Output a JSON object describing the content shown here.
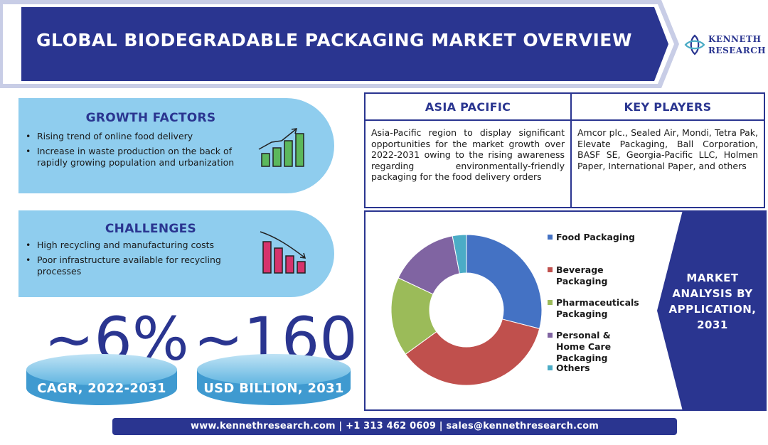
{
  "header": {
    "title": "GLOBAL BIODEGRADABLE PACKAGING MARKET OVERVIEW",
    "logo_line1": "KENNETH",
    "logo_line2": "RESEARCH"
  },
  "growth_factors": {
    "title": "GROWTH FACTORS",
    "items": [
      "Rising trend of online food delivery",
      "Increase in waste production on the back of rapidly growing population and urbanization"
    ]
  },
  "challenges": {
    "title": "CHALLENGES",
    "items": [
      "High recycling and manufacturing costs",
      "Poor infrastructure available for recycling processes"
    ]
  },
  "stats": [
    {
      "value": "~6%",
      "label": "CAGR, 2022-2031"
    },
    {
      "value": "~160",
      "label": "USD BILLION, 2031"
    }
  ],
  "asia_pacific": {
    "title": "ASIA PACIFIC",
    "text": "Asia-Pacific region to display significant opportunities for the market growth over 2022-2031 owing to the rising awareness regarding environmentally-friendly packaging for the food delivery orders"
  },
  "key_players": {
    "title": "KEY PLAYERS",
    "text": "Amcor plc., Sealed Air, Mondi, Tetra Pak, Elevate Packaging, Ball Corporation, BASF SE, Georgia-Pacific LLC, Holmen Paper, International Paper, and others"
  },
  "market_analysis": {
    "line1": "MARKET",
    "line2": "ANALYSIS BY",
    "line3": "APPLICATION,",
    "line4": "2031"
  },
  "chart_data": {
    "type": "pie",
    "donut": true,
    "categories": [
      "Food Packaging",
      "Beverage Packaging",
      "Pharmaceuticals Packaging",
      "Personal & Home Care Packaging",
      "Others"
    ],
    "values": [
      29,
      36,
      17,
      15,
      3
    ],
    "colors": [
      "#4472c4",
      "#c0504d",
      "#9bbb59",
      "#8064a2",
      "#4bacc6"
    ],
    "legend_placement": "right"
  },
  "footer": {
    "text": "www.kennethresearch.com | +1 313 462 0609 | sales@kennethresearch.com"
  },
  "colors": {
    "navy": "#2a3590",
    "light_blue": "#8fcdee"
  }
}
